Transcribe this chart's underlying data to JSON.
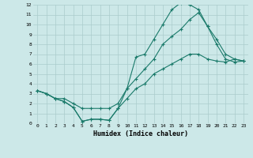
{
  "xlabel": "Humidex (Indice chaleur)",
  "bg_color": "#cce8e8",
  "grid_color": "#aacccc",
  "line_color": "#1a7a6a",
  "xlim": [
    -0.5,
    23.5
  ],
  "ylim": [
    0,
    12
  ],
  "xticks": [
    0,
    1,
    2,
    3,
    4,
    5,
    6,
    7,
    8,
    9,
    10,
    11,
    12,
    13,
    14,
    15,
    16,
    17,
    18,
    19,
    20,
    21,
    22,
    23
  ],
  "yticks": [
    0,
    1,
    2,
    3,
    4,
    5,
    6,
    7,
    8,
    9,
    10,
    11,
    12
  ],
  "line1_x": [
    0,
    1,
    2,
    3,
    4,
    5,
    6,
    7,
    8,
    9,
    10,
    11,
    12,
    13,
    14,
    15,
    16,
    17,
    18,
    19,
    20,
    21,
    22,
    23
  ],
  "line1_y": [
    3.3,
    3.0,
    2.5,
    2.2,
    1.6,
    0.2,
    0.4,
    0.4,
    0.3,
    1.5,
    3.5,
    6.7,
    7.0,
    8.5,
    10.0,
    11.5,
    12.2,
    12.0,
    11.5,
    9.8,
    8.5,
    7.0,
    6.5,
    6.3
  ],
  "line2_x": [
    0,
    1,
    2,
    3,
    4,
    5,
    6,
    7,
    8,
    9,
    10,
    11,
    12,
    13,
    14,
    15,
    16,
    17,
    18,
    19,
    20,
    21,
    22,
    23
  ],
  "line2_y": [
    3.3,
    3.0,
    2.5,
    2.5,
    2.0,
    1.5,
    1.5,
    1.5,
    1.5,
    2.0,
    3.5,
    4.5,
    5.5,
    6.5,
    8.0,
    8.8,
    9.5,
    10.5,
    11.2,
    9.8,
    8.0,
    6.5,
    6.2,
    6.3
  ],
  "line3_x": [
    0,
    1,
    2,
    3,
    4,
    5,
    6,
    7,
    8,
    9,
    10,
    11,
    12,
    13,
    14,
    15,
    16,
    17,
    18,
    19,
    20,
    21,
    22,
    23
  ],
  "line3_y": [
    3.3,
    3.0,
    2.5,
    2.2,
    1.6,
    0.2,
    0.4,
    0.4,
    0.3,
    1.5,
    2.5,
    3.5,
    4.0,
    5.0,
    5.5,
    6.0,
    6.5,
    7.0,
    7.0,
    6.5,
    6.3,
    6.2,
    6.5,
    6.3
  ]
}
